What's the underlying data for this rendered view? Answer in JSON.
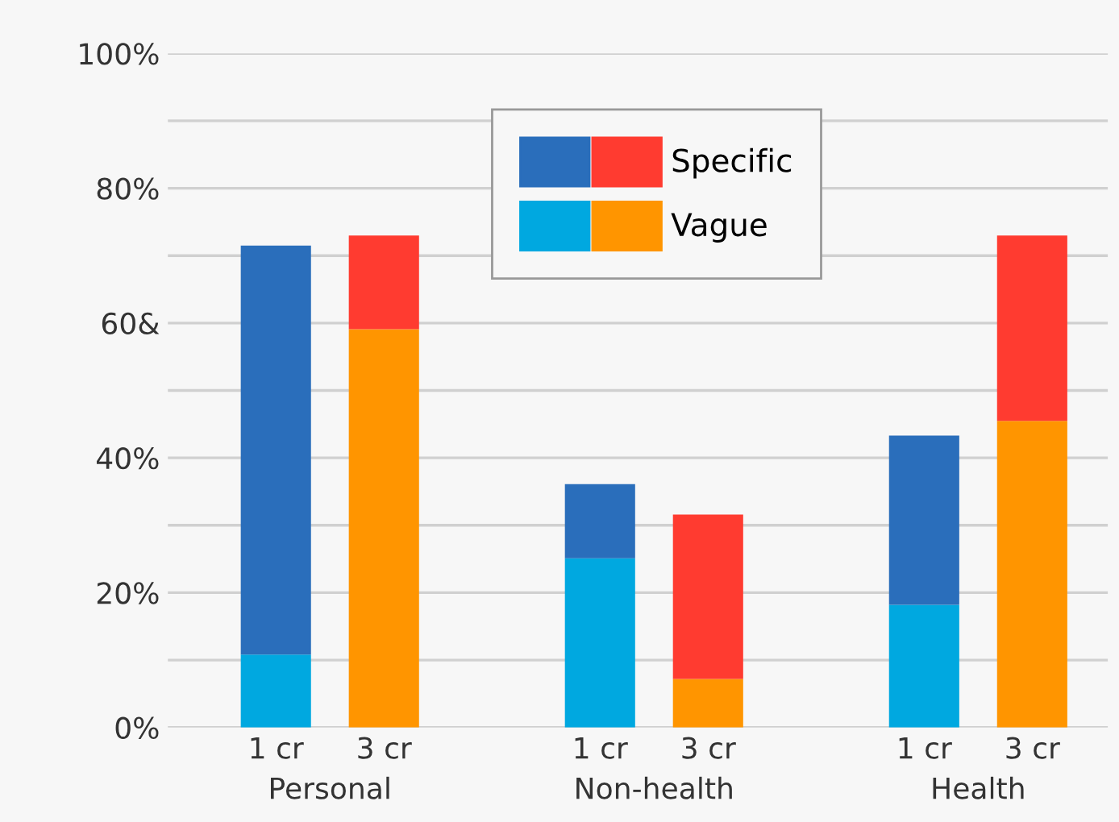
{
  "chart_data": {
    "type": "bar",
    "stacked": true,
    "categories": [
      "1 cr",
      "3 cr",
      null,
      "1 cr",
      "3 cr",
      null,
      "1 cr",
      "3 cr"
    ],
    "series": [
      {
        "color": "#00a8e0",
        "values": [
          10.8,
          null,
          null,
          25.1,
          null,
          null,
          18.2,
          null
        ]
      },
      {
        "name": "Vague",
        "color": "#ff9500",
        "values": [
          null,
          59.1,
          null,
          null,
          7.2,
          null,
          null,
          45.5
        ]
      },
      {
        "color": "#2a6ebb",
        "values": [
          60.7,
          null,
          null,
          11.0,
          null,
          null,
          25.1,
          null
        ]
      },
      {
        "name": "Specific",
        "color": "#ff3b30",
        "values": [
          null,
          13.9,
          null,
          null,
          24.4,
          null,
          null,
          27.5
        ]
      }
    ],
    "annotations": [
      "Personal",
      "Non-health",
      "Health"
    ],
    "ylim": [
      0,
      100
    ],
    "yticks": [
      {
        "value": 0,
        "label": "0%"
      },
      {
        "value": 10,
        "label": null
      },
      {
        "value": 20,
        "label": "20%"
      },
      {
        "value": 30,
        "label": null
      },
      {
        "value": 40,
        "label": "40%"
      },
      {
        "value": 50,
        "label": null
      },
      {
        "value": 60,
        "label": "60&"
      },
      {
        "value": 70,
        "label": null
      },
      {
        "value": 80,
        "label": "80%"
      },
      {
        "value": 90,
        "label": null
      },
      {
        "value": 100,
        "label": "100%"
      }
    ],
    "grid": "y",
    "legend": "top"
  }
}
